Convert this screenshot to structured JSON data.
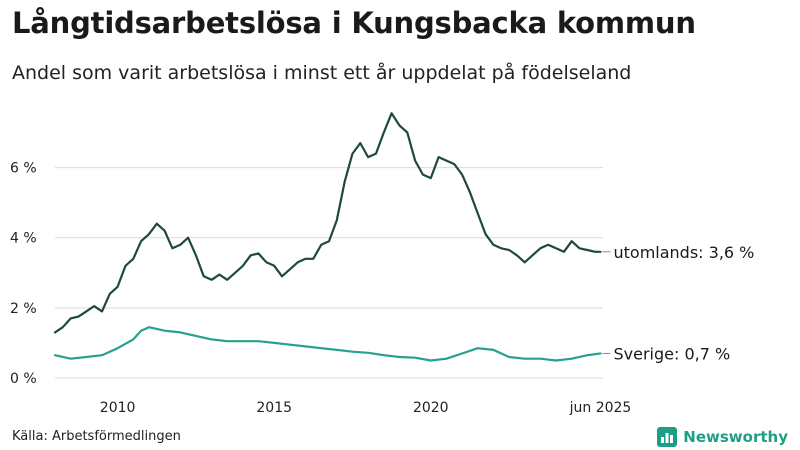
{
  "header": {
    "title": "Långtidsarbetslösa i Kungsbacka kommun",
    "subtitle": "Andel som varit arbetslösa i minst ett år uppdelat på födelseland"
  },
  "footer": {
    "source": "Källa: Arbetsförmedlingen",
    "brand": "Newsworthy"
  },
  "colors": {
    "utomlands": "#1f4840",
    "sverige": "#27a08c",
    "grid": "#d9d9d9",
    "brand": "#1d9f86"
  },
  "chart_data": {
    "type": "line",
    "title": "Långtidsarbetslösa i Kungsbacka kommun",
    "xlabel": "",
    "ylabel": "",
    "xlim": [
      2008.0,
      2025.5
    ],
    "ylim": [
      0,
      7.7
    ],
    "y_ticks": [
      0,
      2,
      4,
      6
    ],
    "y_tick_labels": [
      "0 %",
      "2 %",
      "4 %",
      "6 %"
    ],
    "x_ticks": [
      2010,
      2015,
      2020,
      2025.42
    ],
    "x_tick_labels": [
      "2010",
      "2015",
      "2020",
      "jun 2025"
    ],
    "grid": "horizontal",
    "series": [
      {
        "name": "utomlands",
        "label": "utomlands: 3,6 %",
        "x": [
          2008.0,
          2008.25,
          2008.5,
          2008.75,
          2009.0,
          2009.25,
          2009.5,
          2009.75,
          2010.0,
          2010.25,
          2010.5,
          2010.75,
          2011.0,
          2011.25,
          2011.5,
          2011.75,
          2012.0,
          2012.25,
          2012.5,
          2012.75,
          2013.0,
          2013.25,
          2013.5,
          2013.75,
          2014.0,
          2014.25,
          2014.5,
          2014.75,
          2015.0,
          2015.25,
          2015.5,
          2015.75,
          2016.0,
          2016.25,
          2016.5,
          2016.75,
          2017.0,
          2017.25,
          2017.5,
          2017.75,
          2018.0,
          2018.25,
          2018.5,
          2018.75,
          2019.0,
          2019.25,
          2019.5,
          2019.75,
          2020.0,
          2020.25,
          2020.5,
          2020.75,
          2021.0,
          2021.25,
          2021.5,
          2021.75,
          2022.0,
          2022.25,
          2022.5,
          2022.75,
          2023.0,
          2023.25,
          2023.5,
          2023.75,
          2024.0,
          2024.25,
          2024.5,
          2024.75,
          2025.0,
          2025.25,
          2025.42
        ],
        "values": [
          1.3,
          1.45,
          1.7,
          1.75,
          1.9,
          2.05,
          1.9,
          2.4,
          2.6,
          3.2,
          3.4,
          3.9,
          4.1,
          4.4,
          4.2,
          3.7,
          3.8,
          4.0,
          3.5,
          2.9,
          2.8,
          2.95,
          2.8,
          3.0,
          3.2,
          3.5,
          3.55,
          3.3,
          3.2,
          2.9,
          3.1,
          3.3,
          3.4,
          3.4,
          3.8,
          3.9,
          4.5,
          5.6,
          6.4,
          6.7,
          6.3,
          6.4,
          7.0,
          7.55,
          7.2,
          7.0,
          6.2,
          5.8,
          5.7,
          6.3,
          6.2,
          6.1,
          5.8,
          5.3,
          4.7,
          4.1,
          3.8,
          3.7,
          3.65,
          3.5,
          3.3,
          3.5,
          3.7,
          3.8,
          3.7,
          3.6,
          3.9,
          3.7,
          3.65,
          3.6,
          3.6
        ]
      },
      {
        "name": "sverige",
        "label": "Sverige: 0,7 %",
        "x": [
          2008.0,
          2008.5,
          2009.0,
          2009.5,
          2010.0,
          2010.5,
          2010.75,
          2011.0,
          2011.5,
          2012.0,
          2012.5,
          2013.0,
          2013.5,
          2014.0,
          2014.5,
          2015.0,
          2015.5,
          2016.0,
          2016.5,
          2017.0,
          2017.5,
          2018.0,
          2018.5,
          2019.0,
          2019.5,
          2020.0,
          2020.5,
          2021.0,
          2021.5,
          2022.0,
          2022.5,
          2023.0,
          2023.5,
          2024.0,
          2024.5,
          2025.0,
          2025.42
        ],
        "values": [
          0.65,
          0.55,
          0.6,
          0.65,
          0.85,
          1.1,
          1.35,
          1.45,
          1.35,
          1.3,
          1.2,
          1.1,
          1.05,
          1.05,
          1.05,
          1.0,
          0.95,
          0.9,
          0.85,
          0.8,
          0.75,
          0.72,
          0.65,
          0.6,
          0.58,
          0.5,
          0.55,
          0.7,
          0.85,
          0.8,
          0.6,
          0.55,
          0.55,
          0.5,
          0.55,
          0.65,
          0.7
        ]
      }
    ]
  }
}
